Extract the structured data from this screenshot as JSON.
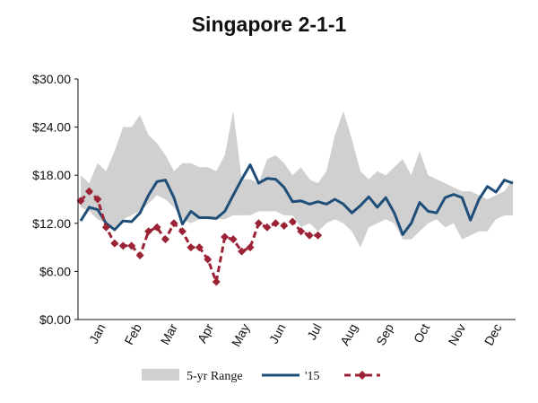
{
  "chart_data": {
    "type": "line",
    "title": "Singapore 2-1-1",
    "xlabel": "",
    "ylabel": "",
    "ylim": [
      0,
      30
    ],
    "y_ticks": [
      "$0.00",
      "$6.00",
      "$12.00",
      "$18.00",
      "$24.00",
      "$30.00"
    ],
    "x_tick_labels": [
      "Jan",
      "Feb",
      "Mar",
      "Apr",
      "May",
      "Jun",
      "Jul",
      "Aug",
      "Sep",
      "Oct",
      "Nov",
      "Dec"
    ],
    "x_week_range": [
      1,
      52
    ],
    "grid": false,
    "legend_position": "bottom",
    "colors": {
      "range": "#d0d0d0",
      "line15": "#1f4e79",
      "line16": "#9b2335"
    },
    "range_series": {
      "name": "5-yr Range",
      "x": [
        1,
        2,
        3,
        4,
        5,
        6,
        7,
        8,
        9,
        10,
        11,
        12,
        13,
        14,
        15,
        16,
        17,
        18,
        19,
        20,
        21,
        22,
        23,
        24,
        25,
        26,
        27,
        28,
        29,
        30,
        31,
        32,
        33,
        34,
        35,
        36,
        37,
        38,
        39,
        40,
        41,
        42,
        43,
        44,
        45,
        46,
        47,
        48,
        49,
        50,
        51,
        52
      ],
      "low": [
        14.0,
        13.5,
        12.5,
        12.0,
        11.5,
        12.5,
        13.0,
        13.5,
        14.5,
        15.5,
        15.0,
        14.0,
        12.5,
        12.0,
        12.5,
        12.5,
        12.5,
        12.5,
        13.0,
        13.0,
        13.0,
        13.5,
        13.5,
        13.5,
        13.0,
        13.0,
        11.5,
        12.0,
        11.0,
        12.0,
        12.5,
        12.0,
        11.0,
        9.0,
        11.5,
        12.0,
        12.5,
        12.0,
        10.0,
        10.0,
        11.0,
        12.0,
        12.5,
        11.5,
        12.0,
        10.0,
        10.5,
        11.0,
        11.0,
        12.5,
        13.0,
        13.0
      ],
      "high": [
        18.0,
        17.0,
        19.5,
        18.5,
        21.0,
        24.0,
        24.0,
        25.5,
        23.0,
        22.0,
        20.5,
        18.5,
        19.5,
        19.5,
        19.0,
        19.0,
        18.5,
        20.5,
        26.0,
        17.5,
        17.5,
        17.0,
        20.0,
        20.5,
        19.5,
        18.0,
        19.0,
        17.5,
        17.0,
        18.5,
        23.0,
        26.0,
        22.5,
        18.5,
        17.5,
        18.5,
        18.0,
        19.0,
        20.0,
        18.0,
        21.0,
        18.0,
        17.5,
        17.0,
        16.5,
        16.0,
        16.0,
        15.5,
        15.0,
        15.5,
        16.0,
        17.5
      ]
    },
    "series": [
      {
        "name": "'15",
        "x": [
          1,
          2,
          3,
          4,
          5,
          6,
          7,
          8,
          9,
          10,
          11,
          12,
          13,
          14,
          15,
          16,
          17,
          18,
          19,
          20,
          21,
          22,
          23,
          24,
          25,
          26,
          27,
          28,
          29,
          30,
          31,
          32,
          33,
          34,
          35,
          36,
          37,
          38,
          39,
          40,
          41,
          42,
          43,
          44,
          45,
          46,
          47,
          48,
          49,
          50,
          51,
          52
        ],
        "values": [
          12.3,
          14.0,
          13.7,
          12.0,
          11.2,
          12.3,
          12.2,
          13.3,
          15.5,
          17.2,
          17.4,
          15.2,
          11.9,
          13.5,
          12.7,
          12.7,
          12.6,
          13.5,
          15.5,
          17.5,
          19.3,
          17.0,
          17.6,
          17.5,
          16.5,
          14.7,
          14.8,
          14.4,
          14.7,
          14.4,
          15.0,
          14.4,
          13.3,
          14.2,
          15.3,
          14.0,
          15.2,
          13.3,
          10.6,
          12.0,
          14.6,
          13.5,
          13.3,
          15.2,
          15.6,
          15.2,
          12.4,
          15.0,
          16.6,
          15.9,
          17.4,
          17.0
        ]
      },
      {
        "name": "",
        "x": [
          1,
          2,
          3,
          4,
          5,
          6,
          7,
          8,
          9,
          10,
          11,
          12,
          13,
          14,
          15,
          16,
          17,
          18,
          19,
          20,
          21,
          22,
          23,
          24,
          25,
          26,
          27,
          28,
          29
        ],
        "values": [
          14.8,
          16.0,
          15.0,
          11.5,
          9.5,
          9.2,
          9.2,
          8.0,
          11.0,
          11.5,
          10.0,
          12.0,
          11.0,
          9.0,
          9.0,
          7.5,
          4.7,
          10.3,
          10.0,
          8.5,
          9.0,
          12.0,
          11.5,
          12.0,
          11.7,
          12.2,
          11.0,
          10.5,
          10.5
        ]
      }
    ]
  }
}
